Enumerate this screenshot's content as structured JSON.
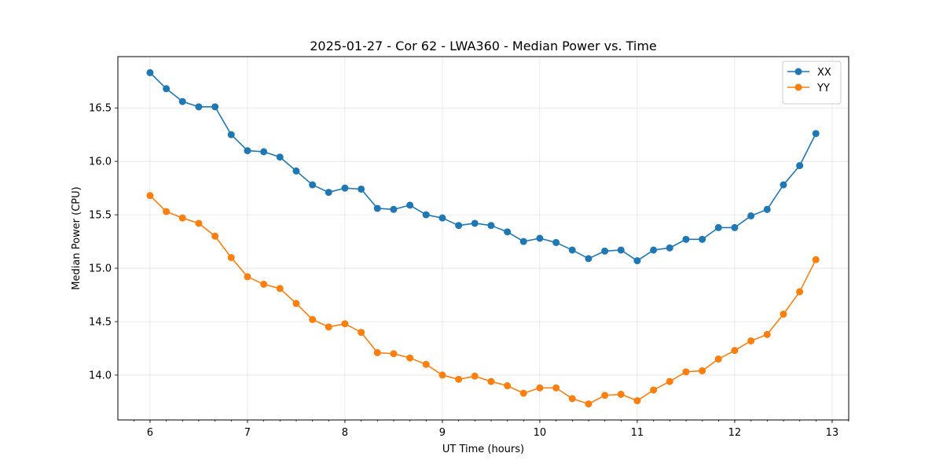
{
  "chart_data": {
    "type": "line",
    "title": "2025-01-27 - Cor 62 - LWA360 - Median Power vs. Time",
    "xlabel": "UT Time (hours)",
    "ylabel": "Median Power (CPU)",
    "xlim": [
      5.67,
      13.17
    ],
    "ylim": [
      13.58,
      16.98
    ],
    "xticks": [
      6,
      7,
      8,
      9,
      10,
      11,
      12,
      13
    ],
    "xtick_labels": [
      "6",
      "7",
      "8",
      "9",
      "10",
      "11",
      "12",
      "13"
    ],
    "yticks": [
      14.0,
      14.5,
      15.0,
      15.5,
      16.0,
      16.5
    ],
    "ytick_labels": [
      "14.0",
      "14.5",
      "15.0",
      "15.5",
      "16.0",
      "16.5"
    ],
    "x_minor_step": 0.1667,
    "grid": true,
    "legend_position": "top-right",
    "x": [
      6.0,
      6.167,
      6.333,
      6.5,
      6.667,
      6.833,
      7.0,
      7.167,
      7.333,
      7.5,
      7.667,
      7.833,
      8.0,
      8.167,
      8.333,
      8.5,
      8.667,
      8.833,
      9.0,
      9.167,
      9.333,
      9.5,
      9.667,
      9.833,
      10.0,
      10.167,
      10.333,
      10.5,
      10.667,
      10.833,
      11.0,
      11.167,
      11.333,
      11.5,
      11.667,
      11.833,
      12.0,
      12.167,
      12.333,
      12.5,
      12.667,
      12.833
    ],
    "series": [
      {
        "name": "XX",
        "color": "#1f77b4",
        "values": [
          16.83,
          16.68,
          16.56,
          16.51,
          16.51,
          16.25,
          16.1,
          16.09,
          16.04,
          15.91,
          15.78,
          15.71,
          15.75,
          15.74,
          15.56,
          15.55,
          15.59,
          15.5,
          15.47,
          15.4,
          15.42,
          15.4,
          15.34,
          15.25,
          15.28,
          15.24,
          15.17,
          15.09,
          15.16,
          15.17,
          15.07,
          15.17,
          15.19,
          15.27,
          15.27,
          15.38,
          15.38,
          15.49,
          15.55,
          15.78,
          15.96,
          16.26
        ]
      },
      {
        "name": "YY",
        "color": "#ff7f0e",
        "values": [
          15.68,
          15.53,
          15.47,
          15.42,
          15.3,
          15.1,
          14.92,
          14.85,
          14.81,
          14.67,
          14.52,
          14.45,
          14.48,
          14.4,
          14.21,
          14.2,
          14.16,
          14.1,
          14.0,
          13.96,
          13.99,
          13.94,
          13.9,
          13.83,
          13.88,
          13.88,
          13.78,
          13.73,
          13.81,
          13.82,
          13.76,
          13.86,
          13.94,
          14.03,
          14.04,
          14.15,
          14.23,
          14.32,
          14.38,
          14.57,
          14.78,
          15.08
        ]
      }
    ]
  }
}
